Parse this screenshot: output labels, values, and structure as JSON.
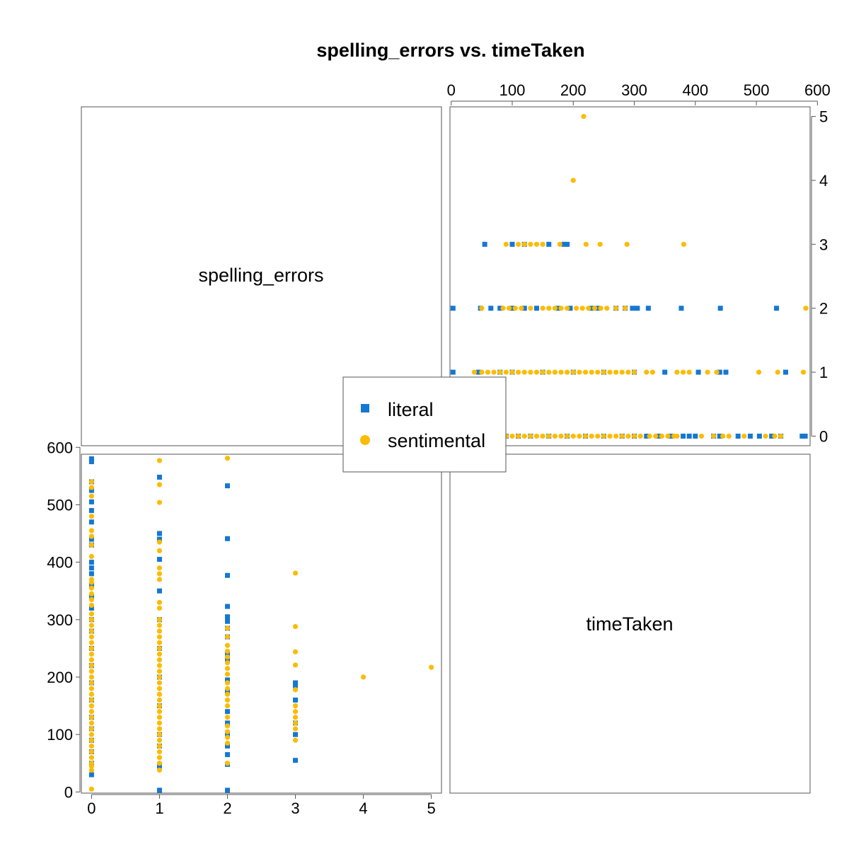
{
  "chart_data": {
    "type": "scatter-matrix",
    "title": "spelling_errors vs. timeTaken",
    "variables": [
      "spelling_errors",
      "timeTaken"
    ],
    "axes": {
      "spelling_errors": {
        "range": [
          -0.15,
          5.15
        ],
        "ticks": [
          0,
          1,
          2,
          3,
          4,
          5
        ]
      },
      "timeTaken": {
        "range": [
          -2,
          588
        ],
        "ticks": [
          0,
          100,
          200,
          300,
          400,
          500,
          600
        ]
      }
    },
    "legend": {
      "placement": "center",
      "entries": [
        {
          "label": "literal",
          "shape": "square",
          "color": "#1577d2"
        },
        {
          "label": "sentimental",
          "shape": "circle",
          "color": "#fbbc05"
        }
      ]
    },
    "series": [
      {
        "name": "literal",
        "color": "#1577d2",
        "marker": "square",
        "points": [
          [
            0,
            580
          ],
          [
            0,
            575
          ],
          [
            0,
            540
          ],
          [
            0,
            525
          ],
          [
            0,
            505
          ],
          [
            0,
            490
          ],
          [
            0,
            470
          ],
          [
            0,
            440
          ],
          [
            0,
            430
          ],
          [
            0,
            400
          ],
          [
            0,
            390
          ],
          [
            0,
            380
          ],
          [
            0,
            360
          ],
          [
            0,
            340
          ],
          [
            0,
            320
          ],
          [
            0,
            300
          ],
          [
            0,
            280
          ],
          [
            0,
            250
          ],
          [
            0,
            220
          ],
          [
            0,
            190
          ],
          [
            0,
            160
          ],
          [
            0,
            130
          ],
          [
            0,
            110
          ],
          [
            0,
            90
          ],
          [
            0,
            70
          ],
          [
            0,
            50
          ],
          [
            0,
            30
          ],
          [
            1,
            548
          ],
          [
            1,
            450
          ],
          [
            1,
            440
          ],
          [
            1,
            405
          ],
          [
            1,
            350
          ],
          [
            1,
            300
          ],
          [
            1,
            250
          ],
          [
            1,
            200
          ],
          [
            1,
            150
          ],
          [
            1,
            100
          ],
          [
            1,
            80
          ],
          [
            1,
            45
          ],
          [
            1,
            3
          ],
          [
            2,
            533
          ],
          [
            2,
            441
          ],
          [
            2,
            377
          ],
          [
            2,
            323
          ],
          [
            2,
            305
          ],
          [
            2,
            297
          ],
          [
            2,
            285
          ],
          [
            2,
            270
          ],
          [
            2,
            240
          ],
          [
            2,
            230
          ],
          [
            2,
            195
          ],
          [
            2,
            175
          ],
          [
            2,
            140
          ],
          [
            2,
            120
          ],
          [
            2,
            100
          ],
          [
            2,
            80
          ],
          [
            2,
            65
          ],
          [
            2,
            48
          ],
          [
            2,
            3
          ],
          [
            3,
            190
          ],
          [
            3,
            185
          ],
          [
            3,
            160
          ],
          [
            3,
            120
          ],
          [
            3,
            100
          ],
          [
            3,
            55
          ]
        ]
      },
      {
        "name": "sentimental",
        "color": "#fbbc05",
        "marker": "circle",
        "points": [
          [
            0,
            540
          ],
          [
            0,
            530
          ],
          [
            0,
            515
          ],
          [
            0,
            480
          ],
          [
            0,
            455
          ],
          [
            0,
            445
          ],
          [
            0,
            430
          ],
          [
            0,
            410
          ],
          [
            0,
            370
          ],
          [
            0,
            365
          ],
          [
            0,
            355
          ],
          [
            0,
            345
          ],
          [
            0,
            335
          ],
          [
            0,
            325
          ],
          [
            0,
            310
          ],
          [
            0,
            300
          ],
          [
            0,
            290
          ],
          [
            0,
            280
          ],
          [
            0,
            270
          ],
          [
            0,
            260
          ],
          [
            0,
            250
          ],
          [
            0,
            240
          ],
          [
            0,
            230
          ],
          [
            0,
            220
          ],
          [
            0,
            210
          ],
          [
            0,
            200
          ],
          [
            0,
            190
          ],
          [
            0,
            180
          ],
          [
            0,
            170
          ],
          [
            0,
            160
          ],
          [
            0,
            150
          ],
          [
            0,
            140
          ],
          [
            0,
            130
          ],
          [
            0,
            120
          ],
          [
            0,
            110
          ],
          [
            0,
            100
          ],
          [
            0,
            90
          ],
          [
            0,
            80
          ],
          [
            0,
            70
          ],
          [
            0,
            60
          ],
          [
            0,
            50
          ],
          [
            0,
            45
          ],
          [
            0,
            38
          ],
          [
            0,
            5
          ],
          [
            1,
            577
          ],
          [
            1,
            535
          ],
          [
            1,
            504
          ],
          [
            1,
            435
          ],
          [
            1,
            420
          ],
          [
            1,
            390
          ],
          [
            1,
            380
          ],
          [
            1,
            370
          ],
          [
            1,
            330
          ],
          [
            1,
            320
          ],
          [
            1,
            300
          ],
          [
            1,
            290
          ],
          [
            1,
            280
          ],
          [
            1,
            270
          ],
          [
            1,
            260
          ],
          [
            1,
            250
          ],
          [
            1,
            240
          ],
          [
            1,
            230
          ],
          [
            1,
            220
          ],
          [
            1,
            210
          ],
          [
            1,
            200
          ],
          [
            1,
            190
          ],
          [
            1,
            180
          ],
          [
            1,
            170
          ],
          [
            1,
            160
          ],
          [
            1,
            150
          ],
          [
            1,
            140
          ],
          [
            1,
            130
          ],
          [
            1,
            120
          ],
          [
            1,
            110
          ],
          [
            1,
            100
          ],
          [
            1,
            90
          ],
          [
            1,
            80
          ],
          [
            1,
            70
          ],
          [
            1,
            60
          ],
          [
            1,
            50
          ],
          [
            1,
            38
          ],
          [
            2,
            581
          ],
          [
            2,
            285
          ],
          [
            2,
            270
          ],
          [
            2,
            255
          ],
          [
            2,
            245
          ],
          [
            2,
            235
          ],
          [
            2,
            225
          ],
          [
            2,
            215
          ],
          [
            2,
            205
          ],
          [
            2,
            190
          ],
          [
            2,
            180
          ],
          [
            2,
            170
          ],
          [
            2,
            160
          ],
          [
            2,
            150
          ],
          [
            2,
            130
          ],
          [
            2,
            115
          ],
          [
            2,
            105
          ],
          [
            2,
            95
          ],
          [
            2,
            85
          ],
          [
            2,
            50
          ],
          [
            3,
            381
          ],
          [
            3,
            288
          ],
          [
            3,
            244
          ],
          [
            3,
            221
          ],
          [
            3,
            178
          ],
          [
            3,
            150
          ],
          [
            3,
            140
          ],
          [
            3,
            130
          ],
          [
            3,
            120
          ],
          [
            3,
            110
          ],
          [
            3,
            90
          ],
          [
            4,
            200
          ],
          [
            5,
            217
          ]
        ]
      }
    ]
  }
}
